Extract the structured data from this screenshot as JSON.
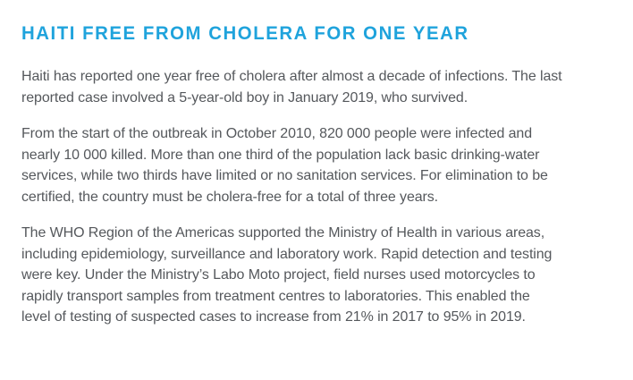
{
  "theme": {
    "accent": "#1FA3DC",
    "text": "#55585C",
    "background": "#FFFFFF"
  },
  "article": {
    "title": "HAITI FREE FROM CHOLERA FOR ONE YEAR",
    "paragraphs": [
      {
        "lines": [
          "Haiti has reported one year free of cholera after almost a decade of infections. The last",
          "reported case involved a 5-year-old boy in January 2019, who survived."
        ]
      },
      {
        "lines": [
          "From the start of the outbreak in October 2010, 820 000 people were infected and",
          "nearly 10 000 killed. More than one third of the population lack basic drinking-water",
          "services, while two thirds have limited or no sanitation services. For elimination to be",
          "certified, the country must be cholera-free for a total of three years."
        ]
      },
      {
        "lines": [
          "The WHO Region of the Americas supported the Ministry of Health in various areas,",
          "including epidemiology, surveillance and laboratory work. Rapid detection and testing",
          "were key. Under the Ministry’s Labo Moto project, field nurses used motorcycles to",
          "rapidly transport samples from treatment centres to laboratories. This enabled the",
          "level of testing of suspected cases to increase from 21% in 2017 to 95% in 2019."
        ]
      }
    ]
  }
}
